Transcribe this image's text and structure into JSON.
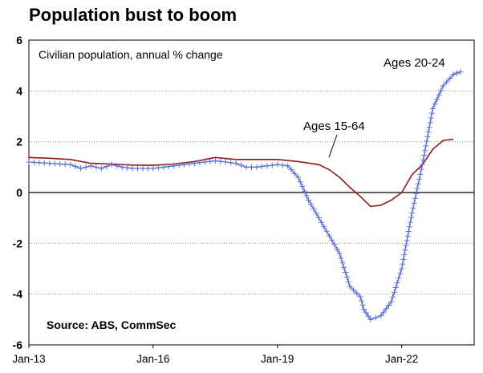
{
  "chart_data": {
    "type": "line",
    "title": "Population bust to boom",
    "subtitle": "Civilian population, annual % change",
    "source": "Source: ABS, CommSec",
    "xlabel": "",
    "ylabel": "",
    "x_start": "Jan-13",
    "x_tick_labels": [
      "Jan-13",
      "Jan-16",
      "Jan-19",
      "Jan-22"
    ],
    "ylim": [
      -6,
      6
    ],
    "y_ticks": [
      -6,
      -4,
      -2,
      0,
      2,
      4,
      6
    ],
    "grid": true,
    "series": [
      {
        "name": "Ages 15-64",
        "color": "#8b1a1a",
        "marker": "none",
        "points": [
          [
            "2013-01",
            1.38
          ],
          [
            "2013-07",
            1.35
          ],
          [
            "2014-01",
            1.3
          ],
          [
            "2014-07",
            1.15
          ],
          [
            "2015-01",
            1.12
          ],
          [
            "2015-07",
            1.08
          ],
          [
            "2016-01",
            1.07
          ],
          [
            "2016-07",
            1.12
          ],
          [
            "2017-01",
            1.22
          ],
          [
            "2017-07",
            1.38
          ],
          [
            "2018-01",
            1.3
          ],
          [
            "2018-07",
            1.3
          ],
          [
            "2019-01",
            1.3
          ],
          [
            "2019-07",
            1.22
          ],
          [
            "2020-01",
            1.1
          ],
          [
            "2020-04",
            0.9
          ],
          [
            "2020-07",
            0.6
          ],
          [
            "2020-10",
            0.2
          ],
          [
            "2021-01",
            -0.15
          ],
          [
            "2021-04",
            -0.55
          ],
          [
            "2021-07",
            -0.5
          ],
          [
            "2021-10",
            -0.3
          ],
          [
            "2022-01",
            0.0
          ],
          [
            "2022-04",
            0.7
          ],
          [
            "2022-07",
            1.1
          ],
          [
            "2022-10",
            1.7
          ],
          [
            "2023-01",
            2.05
          ],
          [
            "2023-04",
            2.1
          ]
        ]
      },
      {
        "name": "Ages 20-24",
        "color": "#5a6fd6",
        "marker": "plus",
        "points": [
          [
            "2013-01",
            1.2
          ],
          [
            "2013-07",
            1.15
          ],
          [
            "2014-01",
            1.1
          ],
          [
            "2014-04",
            0.95
          ],
          [
            "2014-07",
            1.05
          ],
          [
            "2014-10",
            0.95
          ],
          [
            "2015-01",
            1.1
          ],
          [
            "2015-04",
            1.0
          ],
          [
            "2015-07",
            0.95
          ],
          [
            "2016-01",
            0.95
          ],
          [
            "2016-07",
            1.05
          ],
          [
            "2017-01",
            1.15
          ],
          [
            "2017-07",
            1.25
          ],
          [
            "2018-01",
            1.15
          ],
          [
            "2018-04",
            1.0
          ],
          [
            "2018-07",
            1.0
          ],
          [
            "2019-01",
            1.1
          ],
          [
            "2019-04",
            1.05
          ],
          [
            "2019-07",
            0.6
          ],
          [
            "2019-10",
            -0.3
          ],
          [
            "2020-01",
            -1.0
          ],
          [
            "2020-04",
            -1.7
          ],
          [
            "2020-07",
            -2.4
          ],
          [
            "2020-10",
            -3.7
          ],
          [
            "2021-01",
            -4.1
          ],
          [
            "2021-02",
            -4.6
          ],
          [
            "2021-04",
            -5.0
          ],
          [
            "2021-07",
            -4.85
          ],
          [
            "2021-10",
            -4.3
          ],
          [
            "2022-01",
            -3.0
          ],
          [
            "2022-04",
            -0.8
          ],
          [
            "2022-07",
            1.1
          ],
          [
            "2022-10",
            3.3
          ],
          [
            "2023-01",
            4.2
          ],
          [
            "2023-04",
            4.65
          ],
          [
            "2023-06",
            4.75
          ]
        ]
      }
    ],
    "annotations": [
      {
        "text": "Ages 20-24",
        "series": "Ages 20-24"
      },
      {
        "text": "Ages 15-64",
        "series": "Ages 15-64"
      }
    ]
  }
}
